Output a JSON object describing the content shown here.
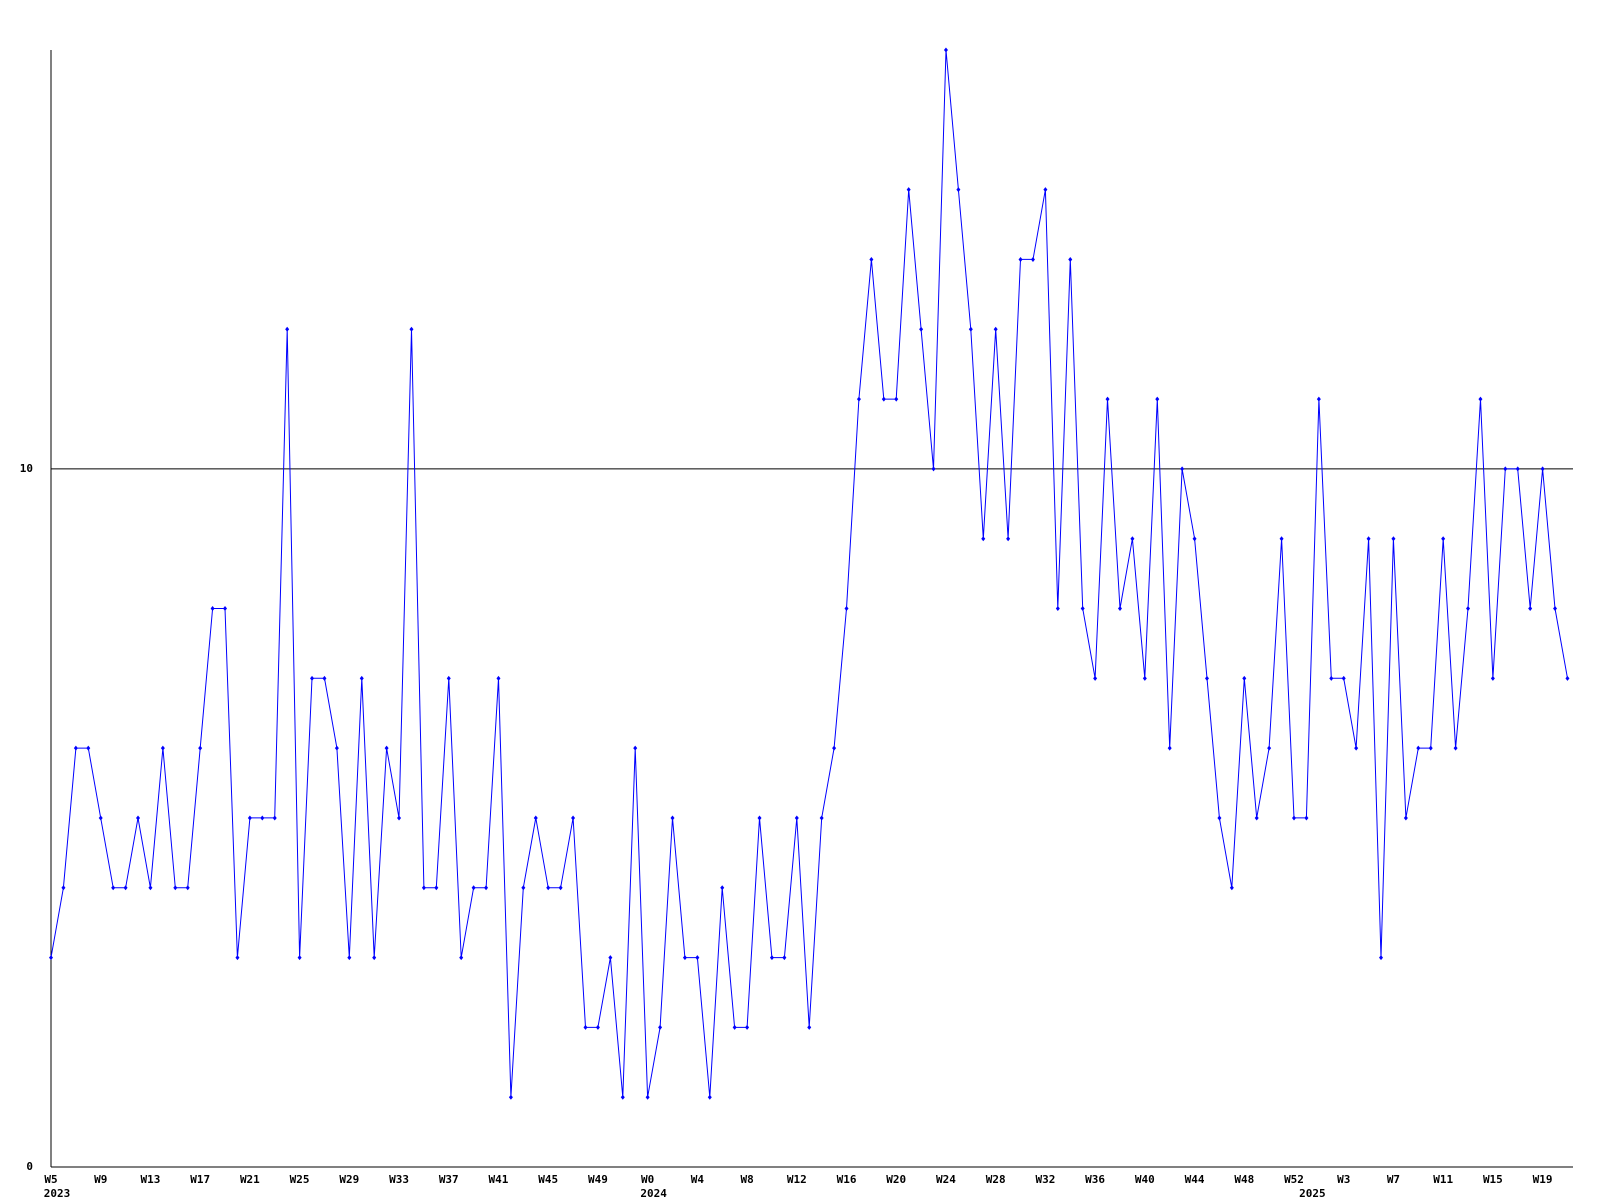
{
  "chart_data": {
    "type": "line",
    "categories": [
      "W5",
      null,
      null,
      null,
      "W9",
      null,
      null,
      null,
      "W13",
      null,
      null,
      null,
      "W17",
      null,
      null,
      null,
      "W21",
      null,
      null,
      null,
      "W25",
      null,
      null,
      null,
      "W29",
      null,
      null,
      null,
      "W33",
      null,
      null,
      null,
      "W37",
      null,
      null,
      null,
      "W41",
      null,
      null,
      null,
      "W45",
      null,
      null,
      null,
      "W49",
      null,
      null,
      null,
      "W0",
      null,
      null,
      null,
      "W4",
      null,
      null,
      null,
      "W8",
      null,
      null,
      null,
      "W12",
      null,
      null,
      null,
      "W16",
      null,
      null,
      null,
      "W20",
      null,
      null,
      null,
      "W24",
      null,
      null,
      null,
      "W28",
      null,
      null,
      null,
      "W32",
      null,
      null,
      null,
      "W36",
      null,
      null,
      null,
      "W40",
      null,
      null,
      null,
      "W44",
      null,
      null,
      null,
      "W48",
      null,
      null,
      null,
      "W52",
      null,
      null,
      null,
      "W3",
      null,
      null,
      null,
      "W7",
      null,
      null,
      null,
      "W11",
      null,
      null,
      null,
      "W15",
      null,
      null,
      null,
      "W19",
      null,
      null
    ],
    "years": [
      "2023",
      null,
      null,
      null,
      null,
      null,
      null,
      null,
      null,
      null,
      null,
      null,
      null,
      null,
      null,
      null,
      null,
      null,
      null,
      null,
      null,
      null,
      null,
      null,
      null,
      null,
      null,
      null,
      null,
      null,
      null,
      null,
      null,
      null,
      null,
      null,
      null,
      null,
      null,
      null,
      null,
      null,
      null,
      null,
      null,
      null,
      null,
      null,
      "2024",
      null,
      null,
      null,
      null,
      null,
      null,
      null,
      null,
      null,
      null,
      null,
      null,
      null,
      null,
      null,
      null,
      null,
      null,
      null,
      null,
      null,
      null,
      null,
      null,
      null,
      null,
      null,
      null,
      null,
      null,
      null,
      null,
      null,
      null,
      null,
      null,
      null,
      null,
      null,
      null,
      null,
      null,
      null,
      null,
      null,
      null,
      null,
      null,
      null,
      null,
      null,
      null,
      "2025",
      null,
      null,
      null,
      null,
      null,
      null,
      null,
      null,
      null,
      null,
      null,
      null,
      null,
      null,
      null,
      null,
      null,
      null,
      null,
      null
    ],
    "values": [
      3,
      4,
      6,
      6,
      5,
      4,
      4,
      5,
      4,
      6,
      4,
      4,
      6,
      8,
      8,
      3,
      5,
      5,
      5,
      12,
      3,
      7,
      7,
      6,
      3,
      7,
      3,
      6,
      5,
      12,
      4,
      4,
      7,
      3,
      4,
      4,
      7,
      1,
      4,
      5,
      4,
      4,
      5,
      2,
      2,
      3,
      1,
      6,
      1,
      2,
      5,
      3,
      3,
      1,
      4,
      2,
      2,
      5,
      3,
      3,
      5,
      2,
      5,
      6,
      8,
      11,
      13,
      11,
      11,
      14,
      12,
      10,
      16,
      14,
      12,
      9,
      12,
      9,
      13,
      13,
      14,
      8,
      13,
      8,
      7,
      11,
      8,
      9,
      7,
      11,
      6,
      10,
      9,
      7,
      5,
      4,
      7,
      5,
      6,
      9,
      5,
      5,
      11,
      7,
      7,
      6,
      9,
      3,
      9,
      5,
      6,
      6,
      9,
      6,
      8,
      11,
      7,
      10,
      10,
      8,
      10,
      8,
      7
    ],
    "color": "#0000ff",
    "ylim": [
      0,
      16
    ],
    "yticks": [
      0,
      10
    ],
    "grid": true
  }
}
